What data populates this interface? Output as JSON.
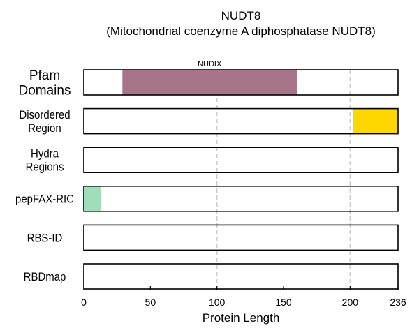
{
  "chart_data": {
    "type": "track",
    "title": "NUDT8",
    "subtitle": "(Mitochondrial coenzyme A diphosphatase NUDT8)",
    "xlabel": "Protein Length",
    "xlim": [
      0,
      236
    ],
    "xticks": [
      0,
      50,
      100,
      150,
      200,
      236
    ],
    "gridlines": [
      100,
      200
    ],
    "tracks": [
      {
        "label_lines": [
          "Pfam",
          "Domains"
        ],
        "segments": [
          {
            "start": 29,
            "end": 160,
            "color": "#a87489",
            "label": "NUDIX"
          }
        ]
      },
      {
        "label_lines": [
          "Disordered",
          "Region"
        ],
        "segments": [
          {
            "start": 202,
            "end": 236,
            "color": "#ffd700"
          }
        ]
      },
      {
        "label_lines": [
          "Hydra",
          "Regions"
        ],
        "segments": []
      },
      {
        "label_lines": [
          "pepFAX-RIC"
        ],
        "segments": [
          {
            "start": 0,
            "end": 13,
            "color": "#a0ddbb"
          }
        ]
      },
      {
        "label_lines": [
          "RBS-ID"
        ],
        "segments": []
      },
      {
        "label_lines": [
          "RBDmap"
        ],
        "segments": []
      }
    ]
  }
}
